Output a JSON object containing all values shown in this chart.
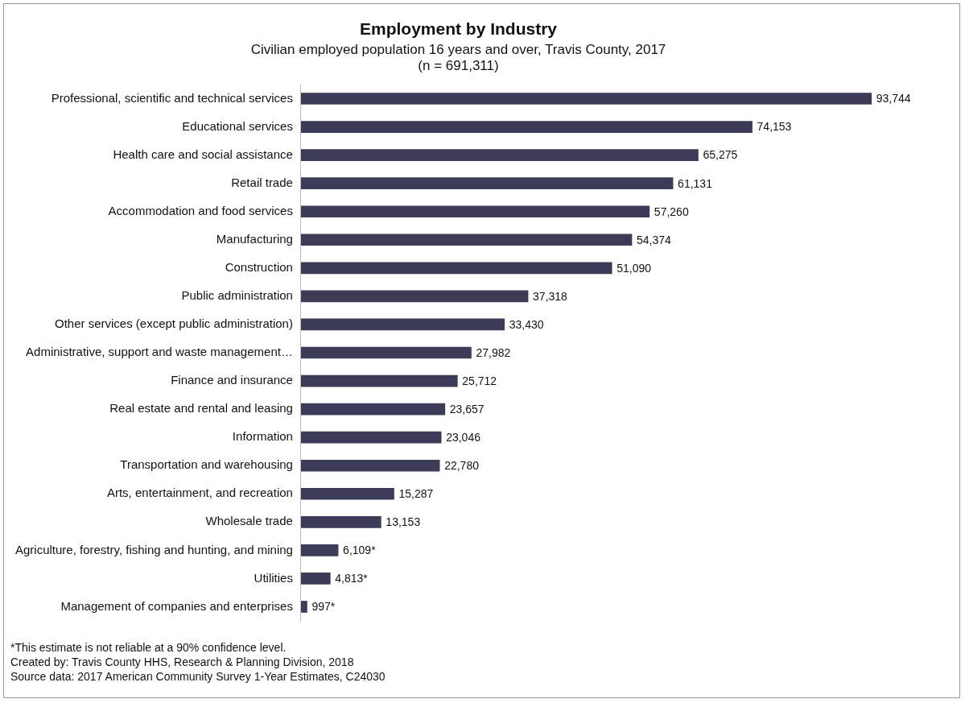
{
  "chart_data": {
    "type": "bar",
    "orientation": "horizontal",
    "title": "Employment by Industry",
    "subtitle": "Civilian employed population 16 years and over, Travis County, 2017\n(n = 691,311)",
    "categories": [
      "Professional, scientific and technical services",
      "Educational services",
      "Health care and social assistance",
      "Retail trade",
      "Accommodation and food services",
      "Manufacturing",
      "Construction",
      "Public administration",
      "Other services (except public administration)",
      "Administrative, support and waste management…",
      "Finance and insurance",
      "Real estate and rental and leasing",
      "Information",
      "Transportation and warehousing",
      "Arts, entertainment, and recreation",
      "Wholesale trade",
      "Agriculture, forestry, fishing and hunting, and mining",
      "Utilities",
      "Management of companies and enterprises"
    ],
    "values": [
      93744,
      74153,
      65275,
      61131,
      57260,
      54374,
      51090,
      37318,
      33430,
      27982,
      25712,
      23657,
      23046,
      22780,
      15287,
      13153,
      6109,
      4813,
      997
    ],
    "value_labels": [
      "93,744",
      "74,153",
      "65,275",
      "61,131",
      "57,260",
      "54,374",
      "51,090",
      "37,318",
      "33,430",
      "27,982",
      "25,712",
      "23,657",
      "23,046",
      "22,780",
      "15,287",
      "13,153",
      "6,109*",
      "4,813*",
      "997*"
    ],
    "color": "#3d3c58",
    "legend": false,
    "annotations": [
      "*This estimate is not reliable at a 90% confidence level.",
      "Created by: Travis County HHS, Research & Planning Division, 2018",
      "Source data: 2017 American Community Survey 1-Year Estimates, C24030"
    ]
  }
}
